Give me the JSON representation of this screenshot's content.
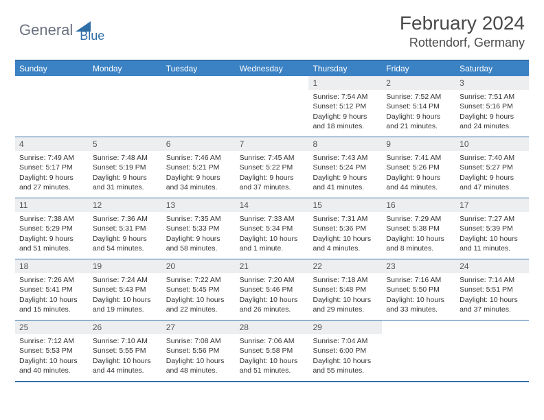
{
  "logo": {
    "general": "General",
    "blue": "Blue"
  },
  "title": "February 2024",
  "location": "Rottendorf, Germany",
  "colors": {
    "header_bg": "#3b82c4",
    "border": "#2f6fa8",
    "daynum_bg": "#eceef0",
    "text": "#333333"
  },
  "day_names": [
    "Sunday",
    "Monday",
    "Tuesday",
    "Wednesday",
    "Thursday",
    "Friday",
    "Saturday"
  ],
  "weeks": [
    [
      null,
      null,
      null,
      null,
      {
        "n": "1",
        "sr": "7:54 AM",
        "ss": "5:12 PM",
        "dl": "9 hours and 18 minutes."
      },
      {
        "n": "2",
        "sr": "7:52 AM",
        "ss": "5:14 PM",
        "dl": "9 hours and 21 minutes."
      },
      {
        "n": "3",
        "sr": "7:51 AM",
        "ss": "5:16 PM",
        "dl": "9 hours and 24 minutes."
      }
    ],
    [
      {
        "n": "4",
        "sr": "7:49 AM",
        "ss": "5:17 PM",
        "dl": "9 hours and 27 minutes."
      },
      {
        "n": "5",
        "sr": "7:48 AM",
        "ss": "5:19 PM",
        "dl": "9 hours and 31 minutes."
      },
      {
        "n": "6",
        "sr": "7:46 AM",
        "ss": "5:21 PM",
        "dl": "9 hours and 34 minutes."
      },
      {
        "n": "7",
        "sr": "7:45 AM",
        "ss": "5:22 PM",
        "dl": "9 hours and 37 minutes."
      },
      {
        "n": "8",
        "sr": "7:43 AM",
        "ss": "5:24 PM",
        "dl": "9 hours and 41 minutes."
      },
      {
        "n": "9",
        "sr": "7:41 AM",
        "ss": "5:26 PM",
        "dl": "9 hours and 44 minutes."
      },
      {
        "n": "10",
        "sr": "7:40 AM",
        "ss": "5:27 PM",
        "dl": "9 hours and 47 minutes."
      }
    ],
    [
      {
        "n": "11",
        "sr": "7:38 AM",
        "ss": "5:29 PM",
        "dl": "9 hours and 51 minutes."
      },
      {
        "n": "12",
        "sr": "7:36 AM",
        "ss": "5:31 PM",
        "dl": "9 hours and 54 minutes."
      },
      {
        "n": "13",
        "sr": "7:35 AM",
        "ss": "5:33 PM",
        "dl": "9 hours and 58 minutes."
      },
      {
        "n": "14",
        "sr": "7:33 AM",
        "ss": "5:34 PM",
        "dl": "10 hours and 1 minute."
      },
      {
        "n": "15",
        "sr": "7:31 AM",
        "ss": "5:36 PM",
        "dl": "10 hours and 4 minutes."
      },
      {
        "n": "16",
        "sr": "7:29 AM",
        "ss": "5:38 PM",
        "dl": "10 hours and 8 minutes."
      },
      {
        "n": "17",
        "sr": "7:27 AM",
        "ss": "5:39 PM",
        "dl": "10 hours and 11 minutes."
      }
    ],
    [
      {
        "n": "18",
        "sr": "7:26 AM",
        "ss": "5:41 PM",
        "dl": "10 hours and 15 minutes."
      },
      {
        "n": "19",
        "sr": "7:24 AM",
        "ss": "5:43 PM",
        "dl": "10 hours and 19 minutes."
      },
      {
        "n": "20",
        "sr": "7:22 AM",
        "ss": "5:45 PM",
        "dl": "10 hours and 22 minutes."
      },
      {
        "n": "21",
        "sr": "7:20 AM",
        "ss": "5:46 PM",
        "dl": "10 hours and 26 minutes."
      },
      {
        "n": "22",
        "sr": "7:18 AM",
        "ss": "5:48 PM",
        "dl": "10 hours and 29 minutes."
      },
      {
        "n": "23",
        "sr": "7:16 AM",
        "ss": "5:50 PM",
        "dl": "10 hours and 33 minutes."
      },
      {
        "n": "24",
        "sr": "7:14 AM",
        "ss": "5:51 PM",
        "dl": "10 hours and 37 minutes."
      }
    ],
    [
      {
        "n": "25",
        "sr": "7:12 AM",
        "ss": "5:53 PM",
        "dl": "10 hours and 40 minutes."
      },
      {
        "n": "26",
        "sr": "7:10 AM",
        "ss": "5:55 PM",
        "dl": "10 hours and 44 minutes."
      },
      {
        "n": "27",
        "sr": "7:08 AM",
        "ss": "5:56 PM",
        "dl": "10 hours and 48 minutes."
      },
      {
        "n": "28",
        "sr": "7:06 AM",
        "ss": "5:58 PM",
        "dl": "10 hours and 51 minutes."
      },
      {
        "n": "29",
        "sr": "7:04 AM",
        "ss": "6:00 PM",
        "dl": "10 hours and 55 minutes."
      },
      null,
      null
    ]
  ],
  "labels": {
    "sunrise": "Sunrise: ",
    "sunset": "Sunset: ",
    "daylight": "Daylight: "
  }
}
